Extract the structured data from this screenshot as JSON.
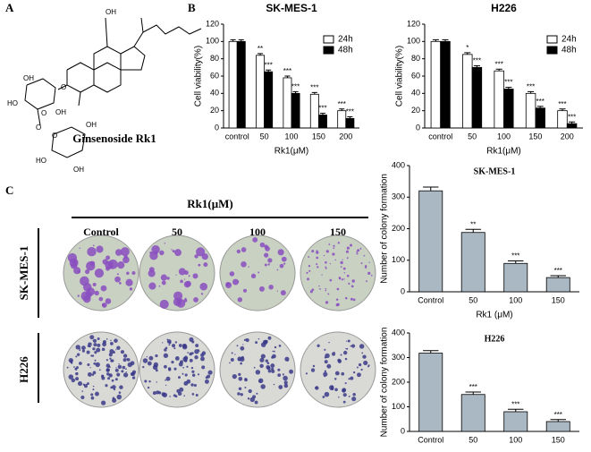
{
  "panel_labels": [
    "A",
    "B",
    "C"
  ],
  "compound": {
    "name": "Ginsenoside Rk1",
    "atom_labels": [
      "OH",
      "O",
      "OH",
      "HO",
      "O",
      "OH",
      "O",
      "O",
      "OH",
      "HO",
      "OH"
    ]
  },
  "colony_images": {
    "header": "Rk1(μM)",
    "columns": [
      "Control",
      "50",
      "100",
      "150"
    ],
    "rows": [
      "SK-MES-1",
      "H226"
    ]
  },
  "chart_data": [
    {
      "type": "bar",
      "title": "SK-MES-1",
      "xlabel": "Rk1(μM)",
      "ylabel": "Cell viability(%)",
      "categories": [
        "control",
        "50",
        "100",
        "150",
        "200"
      ],
      "series": [
        {
          "name": "24h",
          "color": "#ffffff",
          "values": [
            100,
            84,
            58,
            39,
            20
          ],
          "errors": [
            2,
            2,
            2,
            2,
            2
          ],
          "annotations": [
            null,
            "**",
            "***",
            "***",
            "***"
          ]
        },
        {
          "name": "48h",
          "color": "#000000",
          "values": [
            100,
            65,
            40,
            15,
            11
          ],
          "errors": [
            2,
            2,
            2,
            2,
            2
          ],
          "annotations": [
            null,
            "***",
            "***",
            "***",
            "***"
          ]
        }
      ],
      "ylim": [
        0,
        120
      ],
      "yticks": [
        0,
        20,
        40,
        60,
        80,
        100,
        120
      ],
      "legend": "upper right"
    },
    {
      "type": "bar",
      "title": "H226",
      "xlabel": "Rk1(μM)",
      "ylabel": "Cell viability(%)",
      "categories": [
        "control",
        "50",
        "100",
        "150",
        "200"
      ],
      "series": [
        {
          "name": "24h",
          "color": "#ffffff",
          "values": [
            100,
            85,
            66,
            40,
            20
          ],
          "errors": [
            2,
            2,
            2,
            2,
            2
          ],
          "annotations": [
            null,
            "*",
            "***",
            "***",
            "***"
          ]
        },
        {
          "name": "48h",
          "color": "#000000",
          "values": [
            100,
            70,
            45,
            23,
            5
          ],
          "errors": [
            2,
            2,
            2,
            2,
            2
          ],
          "annotations": [
            null,
            "***",
            "***",
            "***",
            "***"
          ]
        }
      ],
      "ylim": [
        0,
        120
      ],
      "yticks": [
        0,
        20,
        40,
        60,
        80,
        100,
        120
      ],
      "legend": "upper right"
    },
    {
      "type": "bar",
      "title": "SK-MES-1",
      "xlabel": "Rk1 (μM)",
      "ylabel": "Number of colony formation",
      "categories": [
        "Control",
        "50",
        "100",
        "150"
      ],
      "color": "#a9b8c2",
      "values": [
        320,
        188,
        90,
        45
      ],
      "errors": [
        12,
        10,
        8,
        6
      ],
      "annotations": [
        null,
        "**",
        "***",
        "***"
      ],
      "ylim": [
        0,
        400
      ],
      "yticks": [
        0,
        100,
        200,
        300,
        400
      ]
    },
    {
      "type": "bar",
      "title": "H226",
      "ylabel": "Number of colony formation",
      "categories": [
        "Control",
        "50",
        "100",
        "150"
      ],
      "color": "#a9b8c2",
      "values": [
        318,
        150,
        80,
        40
      ],
      "errors": [
        10,
        10,
        10,
        8
      ],
      "annotations": [
        null,
        "***",
        "***",
        "***"
      ],
      "ylim": [
        0,
        400
      ],
      "yticks": [
        0,
        100,
        200,
        300,
        400
      ]
    }
  ]
}
